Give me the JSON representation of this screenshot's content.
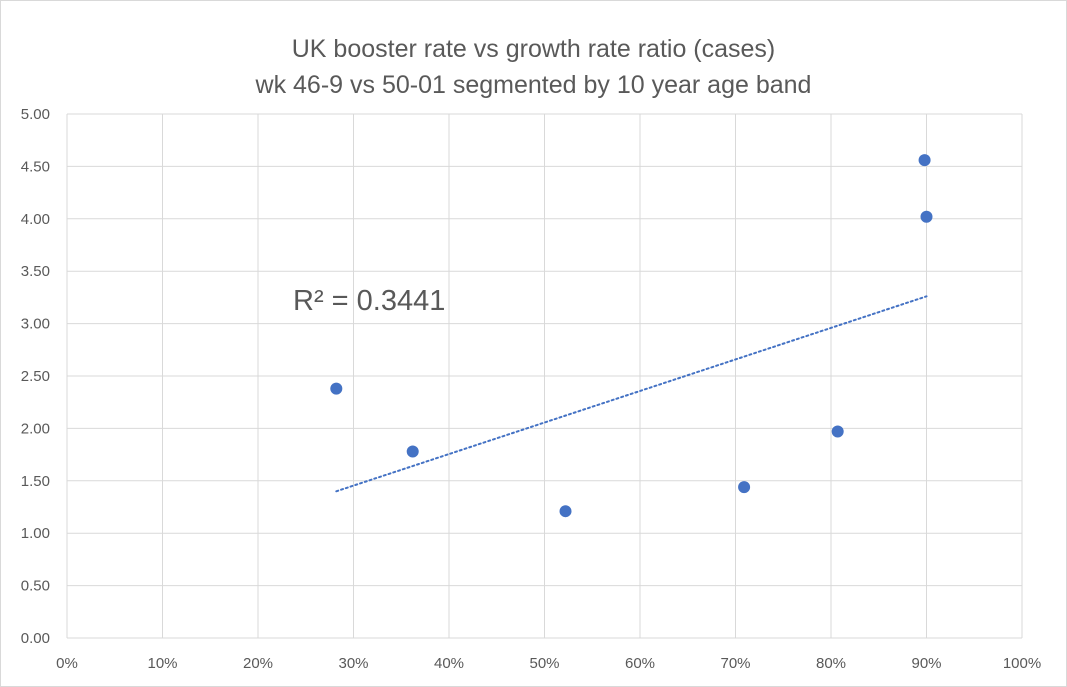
{
  "chart_data": {
    "type": "scatter",
    "title": [
      "UK booster rate vs growth rate ratio (cases)",
      "wk 46-9 vs 50-01 segmented by 10 year age band"
    ],
    "xlabel": "",
    "ylabel": "",
    "xlim": [
      0,
      1.0
    ],
    "ylim": [
      0,
      5.0
    ],
    "x_ticks": [
      "0%",
      "10%",
      "20%",
      "30%",
      "40%",
      "50%",
      "60%",
      "70%",
      "80%",
      "90%",
      "100%"
    ],
    "y_ticks": [
      "0.00",
      "0.50",
      "1.00",
      "1.50",
      "2.00",
      "2.50",
      "3.00",
      "3.50",
      "4.00",
      "4.50",
      "5.00"
    ],
    "grid": true,
    "legend": "none",
    "series": [
      {
        "name": "age bands",
        "x": [
          0.282,
          0.362,
          0.522,
          0.709,
          0.807,
          0.898,
          0.9
        ],
        "y": [
          2.38,
          1.78,
          1.21,
          1.44,
          1.97,
          4.56,
          4.02
        ]
      }
    ],
    "trendline": {
      "type": "linear",
      "style": "dotted",
      "x_range": [
        0.282,
        0.9
      ],
      "y_range": [
        1.4,
        3.26
      ],
      "r_squared_label": "R² = 0.3441"
    },
    "colors": {
      "marker": "#4472C4",
      "trendline": "#4472C4",
      "grid": "#d9d9d9",
      "text": "#595959"
    }
  }
}
